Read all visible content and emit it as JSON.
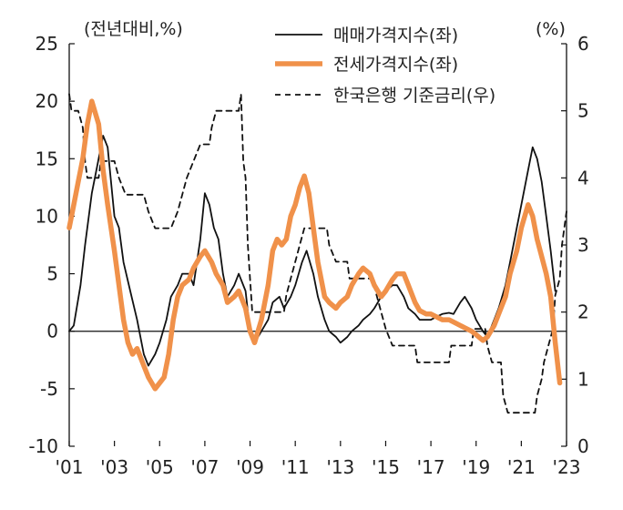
{
  "chart_data": {
    "type": "line",
    "left_axis_unit": "(전년대비,%)",
    "right_axis_unit": "(%)",
    "x_tick_labels": [
      "'01",
      "'03",
      "'05",
      "'07",
      "'09",
      "'11",
      "'13",
      "'15",
      "'17",
      "'19",
      "'21",
      "'23"
    ],
    "x_tick_years": [
      2001,
      2003,
      2005,
      2007,
      2009,
      2011,
      2013,
      2015,
      2017,
      2019,
      2021,
      2023
    ],
    "x_range": [
      2001,
      2023
    ],
    "ylim_left": [
      -10,
      25
    ],
    "y_ticks_left": [
      "-10",
      "-5",
      "0",
      "5",
      "10",
      "15",
      "20",
      "25"
    ],
    "ylim_right": [
      0,
      6
    ],
    "y_ticks_right": [
      "0",
      "1",
      "2",
      "3",
      "4",
      "5",
      "6"
    ],
    "legend_position": "top-center",
    "colors": {
      "sale": "#111111",
      "jeonse": "#f0914a",
      "rate": "#111111",
      "axis": "#111111"
    },
    "series": [
      {
        "name": "매매가격지수(좌)",
        "axis": "left",
        "points": [
          [
            2001.0,
            0
          ],
          [
            2001.2,
            0.5
          ],
          [
            2001.5,
            4
          ],
          [
            2001.7,
            7.5
          ],
          [
            2002.0,
            12
          ],
          [
            2002.3,
            15
          ],
          [
            2002.5,
            17
          ],
          [
            2002.7,
            16
          ],
          [
            2003.0,
            10
          ],
          [
            2003.2,
            9
          ],
          [
            2003.4,
            6
          ],
          [
            2003.7,
            3.5
          ],
          [
            2004.0,
            1
          ],
          [
            2004.3,
            -2
          ],
          [
            2004.5,
            -3
          ],
          [
            2004.8,
            -2
          ],
          [
            2005.0,
            -1
          ],
          [
            2005.3,
            1
          ],
          [
            2005.5,
            3
          ],
          [
            2005.8,
            4
          ],
          [
            2006.0,
            5
          ],
          [
            2006.3,
            5
          ],
          [
            2006.5,
            4
          ],
          [
            2006.8,
            8
          ],
          [
            2007.0,
            12
          ],
          [
            2007.2,
            11
          ],
          [
            2007.4,
            9
          ],
          [
            2007.6,
            8
          ],
          [
            2007.8,
            5
          ],
          [
            2008.0,
            3
          ],
          [
            2008.3,
            4
          ],
          [
            2008.5,
            5
          ],
          [
            2008.8,
            3.5
          ],
          [
            2009.0,
            0
          ],
          [
            2009.2,
            -1
          ],
          [
            2009.5,
            0
          ],
          [
            2009.8,
            1
          ],
          [
            2010.0,
            2.5
          ],
          [
            2010.3,
            3
          ],
          [
            2010.5,
            2
          ],
          [
            2010.8,
            3
          ],
          [
            2011.0,
            4
          ],
          [
            2011.3,
            6
          ],
          [
            2011.5,
            7
          ],
          [
            2011.8,
            5
          ],
          [
            2012.0,
            3
          ],
          [
            2012.3,
            1
          ],
          [
            2012.5,
            0
          ],
          [
            2012.8,
            -0.5
          ],
          [
            2013.0,
            -1
          ],
          [
            2013.3,
            -0.5
          ],
          [
            2013.5,
            0
          ],
          [
            2013.8,
            0.5
          ],
          [
            2014.0,
            1
          ],
          [
            2014.3,
            1.5
          ],
          [
            2014.5,
            2
          ],
          [
            2014.8,
            3
          ],
          [
            2015.0,
            3.5
          ],
          [
            2015.3,
            4
          ],
          [
            2015.5,
            4
          ],
          [
            2015.8,
            3
          ],
          [
            2016.0,
            2
          ],
          [
            2016.3,
            1.5
          ],
          [
            2016.5,
            1
          ],
          [
            2016.8,
            1
          ],
          [
            2017.0,
            1
          ],
          [
            2017.3,
            1.3
          ],
          [
            2017.5,
            1.5
          ],
          [
            2017.8,
            1.6
          ],
          [
            2018.0,
            1.5
          ],
          [
            2018.3,
            2.5
          ],
          [
            2018.5,
            3
          ],
          [
            2018.8,
            2
          ],
          [
            2019.0,
            1
          ],
          [
            2019.3,
            0
          ],
          [
            2019.5,
            -0.5
          ],
          [
            2019.8,
            1
          ],
          [
            2020.0,
            2
          ],
          [
            2020.3,
            4
          ],
          [
            2020.5,
            6
          ],
          [
            2020.8,
            9
          ],
          [
            2021.0,
            11
          ],
          [
            2021.3,
            14
          ],
          [
            2021.5,
            16
          ],
          [
            2021.7,
            15
          ],
          [
            2021.9,
            13
          ],
          [
            2022.1,
            10
          ],
          [
            2022.3,
            7
          ],
          [
            2022.5,
            3.5
          ]
        ]
      },
      {
        "name": "전세가격지수(좌)",
        "axis": "left",
        "points": [
          [
            2001.0,
            9
          ],
          [
            2001.2,
            11
          ],
          [
            2001.4,
            13
          ],
          [
            2001.6,
            15
          ],
          [
            2001.8,
            18
          ],
          [
            2002.0,
            20
          ],
          [
            2002.3,
            18
          ],
          [
            2002.5,
            14
          ],
          [
            2002.7,
            11
          ],
          [
            2003.0,
            7
          ],
          [
            2003.2,
            4
          ],
          [
            2003.4,
            1
          ],
          [
            2003.6,
            -1
          ],
          [
            2003.8,
            -2
          ],
          [
            2004.0,
            -1.5
          ],
          [
            2004.3,
            -3
          ],
          [
            2004.5,
            -4
          ],
          [
            2004.8,
            -5
          ],
          [
            2005.0,
            -4.5
          ],
          [
            2005.2,
            -4
          ],
          [
            2005.4,
            -2
          ],
          [
            2005.6,
            1
          ],
          [
            2005.8,
            3
          ],
          [
            2006.0,
            4
          ],
          [
            2006.3,
            4.5
          ],
          [
            2006.5,
            5.5
          ],
          [
            2006.8,
            6.5
          ],
          [
            2007.0,
            7
          ],
          [
            2007.3,
            6
          ],
          [
            2007.5,
            5
          ],
          [
            2007.8,
            4
          ],
          [
            2008.0,
            2.5
          ],
          [
            2008.3,
            3
          ],
          [
            2008.5,
            3.5
          ],
          [
            2008.8,
            2
          ],
          [
            2009.0,
            0
          ],
          [
            2009.2,
            -1
          ],
          [
            2009.5,
            1
          ],
          [
            2009.8,
            4
          ],
          [
            2010.0,
            7
          ],
          [
            2010.2,
            8
          ],
          [
            2010.4,
            7.5
          ],
          [
            2010.6,
            8
          ],
          [
            2010.8,
            10
          ],
          [
            2011.0,
            11
          ],
          [
            2011.2,
            12.5
          ],
          [
            2011.4,
            13.5
          ],
          [
            2011.6,
            12
          ],
          [
            2011.8,
            9
          ],
          [
            2012.0,
            6
          ],
          [
            2012.3,
            3
          ],
          [
            2012.5,
            2.5
          ],
          [
            2012.8,
            2
          ],
          [
            2013.0,
            2.5
          ],
          [
            2013.3,
            3
          ],
          [
            2013.5,
            4
          ],
          [
            2013.8,
            5
          ],
          [
            2014.0,
            5.5
          ],
          [
            2014.3,
            5
          ],
          [
            2014.5,
            4
          ],
          [
            2014.8,
            3
          ],
          [
            2015.0,
            3.5
          ],
          [
            2015.3,
            4.5
          ],
          [
            2015.5,
            5
          ],
          [
            2015.8,
            5
          ],
          [
            2016.0,
            4
          ],
          [
            2016.3,
            2.5
          ],
          [
            2016.5,
            1.8
          ],
          [
            2016.8,
            1.5
          ],
          [
            2017.0,
            1.5
          ],
          [
            2017.3,
            1.2
          ],
          [
            2017.5,
            1
          ],
          [
            2017.8,
            1
          ],
          [
            2018.0,
            0.8
          ],
          [
            2018.3,
            0.5
          ],
          [
            2018.5,
            0.3
          ],
          [
            2018.8,
            0
          ],
          [
            2019.0,
            -0.3
          ],
          [
            2019.3,
            -0.8
          ],
          [
            2019.5,
            -0.5
          ],
          [
            2019.8,
            0.5
          ],
          [
            2020.0,
            1.5
          ],
          [
            2020.3,
            3
          ],
          [
            2020.5,
            5
          ],
          [
            2020.8,
            7
          ],
          [
            2021.0,
            9
          ],
          [
            2021.3,
            11
          ],
          [
            2021.5,
            10
          ],
          [
            2021.7,
            8
          ],
          [
            2021.9,
            6.5
          ],
          [
            2022.1,
            5
          ],
          [
            2022.3,
            3
          ],
          [
            2022.5,
            -1
          ],
          [
            2022.7,
            -4.5
          ]
        ]
      },
      {
        "name": "한국은행 기준금리(우)",
        "axis": "right",
        "dashed": true,
        "points": [
          [
            2001.0,
            5.25
          ],
          [
            2001.1,
            5.0
          ],
          [
            2001.4,
            5.0
          ],
          [
            2001.6,
            4.75
          ],
          [
            2001.7,
            4.25
          ],
          [
            2001.8,
            4.0
          ],
          [
            2002.3,
            4.0
          ],
          [
            2002.4,
            4.25
          ],
          [
            2003.0,
            4.25
          ],
          [
            2003.2,
            4.0
          ],
          [
            2003.5,
            3.75
          ],
          [
            2004.3,
            3.75
          ],
          [
            2004.5,
            3.5
          ],
          [
            2004.8,
            3.25
          ],
          [
            2005.5,
            3.25
          ],
          [
            2005.8,
            3.5
          ],
          [
            2006.0,
            3.75
          ],
          [
            2006.2,
            4.0
          ],
          [
            2006.5,
            4.25
          ],
          [
            2006.8,
            4.5
          ],
          [
            2007.2,
            4.5
          ],
          [
            2007.3,
            4.75
          ],
          [
            2007.5,
            5.0
          ],
          [
            2008.5,
            5.0
          ],
          [
            2008.6,
            5.25
          ],
          [
            2008.7,
            4.25
          ],
          [
            2008.8,
            4.0
          ],
          [
            2008.9,
            3.0
          ],
          [
            2009.0,
            2.5
          ],
          [
            2009.1,
            2.0
          ],
          [
            2010.5,
            2.0
          ],
          [
            2010.6,
            2.25
          ],
          [
            2010.8,
            2.5
          ],
          [
            2011.0,
            2.75
          ],
          [
            2011.2,
            3.0
          ],
          [
            2011.4,
            3.25
          ],
          [
            2012.4,
            3.25
          ],
          [
            2012.5,
            3.0
          ],
          [
            2012.8,
            2.75
          ],
          [
            2013.3,
            2.75
          ],
          [
            2013.4,
            2.5
          ],
          [
            2014.4,
            2.5
          ],
          [
            2014.6,
            2.25
          ],
          [
            2014.8,
            2.0
          ],
          [
            2015.0,
            1.75
          ],
          [
            2015.3,
            1.5
          ],
          [
            2016.3,
            1.5
          ],
          [
            2016.4,
            1.25
          ],
          [
            2017.8,
            1.25
          ],
          [
            2017.9,
            1.5
          ],
          [
            2018.8,
            1.5
          ],
          [
            2018.9,
            1.75
          ],
          [
            2019.4,
            1.75
          ],
          [
            2019.5,
            1.5
          ],
          [
            2019.7,
            1.25
          ],
          [
            2020.1,
            1.25
          ],
          [
            2020.2,
            0.75
          ],
          [
            2020.4,
            0.5
          ],
          [
            2021.6,
            0.5
          ],
          [
            2021.7,
            0.75
          ],
          [
            2021.9,
            1.0
          ],
          [
            2022.0,
            1.25
          ],
          [
            2022.2,
            1.5
          ],
          [
            2022.4,
            1.75
          ],
          [
            2022.5,
            2.25
          ],
          [
            2022.7,
            2.5
          ],
          [
            2022.8,
            3.0
          ],
          [
            2022.9,
            3.25
          ],
          [
            2023.0,
            3.5
          ]
        ]
      }
    ]
  }
}
